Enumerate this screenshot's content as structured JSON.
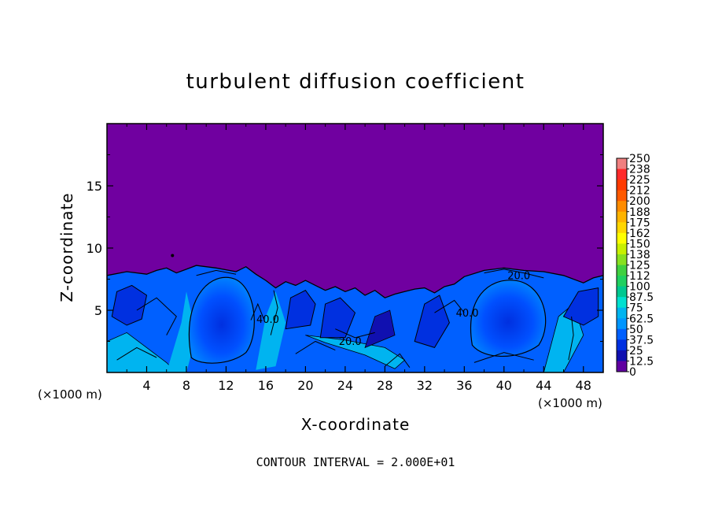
{
  "chart_data": {
    "type": "heatmap",
    "title": "turbulent diffusion coefficient",
    "xlabel": "X-coordinate",
    "ylabel": "Z-coordinate",
    "x_unit": "(×1000 m)",
    "z_unit": "(×1000 m)",
    "xlim": [
      0,
      50
    ],
    "ylim": [
      0,
      20
    ],
    "x_ticks": [
      4,
      8,
      12,
      16,
      20,
      24,
      28,
      32,
      36,
      40,
      44,
      48
    ],
    "y_ticks": [
      5,
      10,
      15
    ],
    "contour_interval_text": "CONTOUR INTERVAL = 2.000E+01",
    "contour_labels": [
      {
        "text": "20.0",
        "x": 24.5,
        "z": 2.2
      },
      {
        "text": "40.0",
        "x": 36.3,
        "z": 4.5
      },
      {
        "text": "40.0",
        "x": 16.2,
        "z": 4.0
      },
      {
        "text": "20.0",
        "x": 41.5,
        "z": 7.5
      }
    ],
    "colorbar": {
      "labels": [
        "250",
        "238",
        "225",
        "212",
        "200",
        "188",
        "175",
        "162",
        "150",
        "138",
        "125",
        "112",
        "100",
        "87.5",
        "75",
        "62.5",
        "50",
        "37.5",
        "25",
        "12.5",
        "0"
      ],
      "colors": [
        "#f08080",
        "#ff2a2a",
        "#ff3a00",
        "#ff5a00",
        "#ff8c00",
        "#ffb400",
        "#ffd700",
        "#ffff00",
        "#c8f000",
        "#88e020",
        "#40d040",
        "#20d060",
        "#00c890",
        "#00e0d0",
        "#00b4f0",
        "#0096ff",
        "#0060ff",
        "#0030e0",
        "#1010b0",
        "#6000a0"
      ]
    },
    "background_color": "#7000a0"
  }
}
